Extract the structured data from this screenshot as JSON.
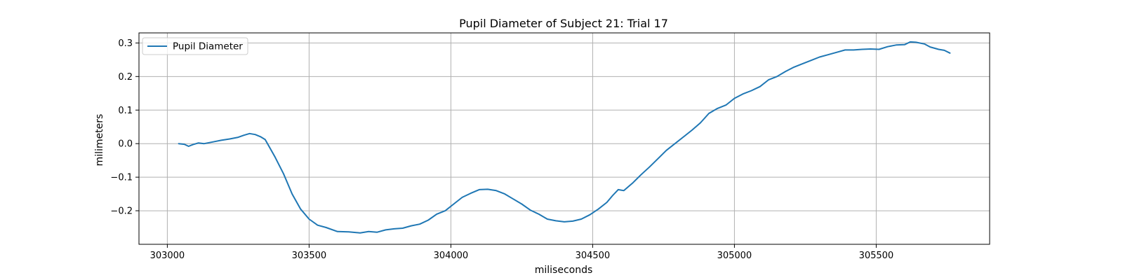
{
  "chart_data": {
    "type": "line",
    "title": "Pupil Diameter of Subject 21: Trial 17",
    "xlabel": "miliseconds",
    "ylabel": "milimeters",
    "xlim": [
      302900,
      305900
    ],
    "ylim": [
      -0.3,
      0.33
    ],
    "xticks": [
      303000,
      303500,
      304000,
      304500,
      305000,
      305500
    ],
    "yticks": [
      -0.2,
      -0.1,
      0.0,
      0.1,
      0.2,
      0.3
    ],
    "xtick_labels": [
      "303000",
      "303500",
      "304000",
      "304500",
      "305000",
      "305500"
    ],
    "ytick_labels": [
      "−0.2",
      "−0.1",
      "0.0",
      "0.1",
      "0.2",
      "0.3"
    ],
    "grid": true,
    "legend_position": "top-left",
    "series": [
      {
        "name": "Pupil Diameter",
        "color": "#1f77b4",
        "points": [
          [
            303040,
            0.0
          ],
          [
            303060,
            -0.002
          ],
          [
            303075,
            -0.008
          ],
          [
            303090,
            -0.003
          ],
          [
            303110,
            0.002
          ],
          [
            303130,
            0.0
          ],
          [
            303160,
            0.005
          ],
          [
            303190,
            0.01
          ],
          [
            303220,
            0.014
          ],
          [
            303250,
            0.019
          ],
          [
            303270,
            0.025
          ],
          [
            303290,
            0.03
          ],
          [
            303310,
            0.027
          ],
          [
            303330,
            0.02
          ],
          [
            303345,
            0.012
          ],
          [
            303360,
            -0.01
          ],
          [
            303380,
            -0.04
          ],
          [
            303410,
            -0.09
          ],
          [
            303440,
            -0.15
          ],
          [
            303470,
            -0.195
          ],
          [
            303500,
            -0.225
          ],
          [
            303530,
            -0.243
          ],
          [
            303560,
            -0.25
          ],
          [
            303600,
            -0.262
          ],
          [
            303640,
            -0.263
          ],
          [
            303680,
            -0.266
          ],
          [
            303710,
            -0.262
          ],
          [
            303740,
            -0.264
          ],
          [
            303770,
            -0.257
          ],
          [
            303800,
            -0.254
          ],
          [
            303830,
            -0.252
          ],
          [
            303860,
            -0.245
          ],
          [
            303890,
            -0.24
          ],
          [
            303920,
            -0.228
          ],
          [
            303950,
            -0.21
          ],
          [
            303980,
            -0.2
          ],
          [
            304010,
            -0.18
          ],
          [
            304040,
            -0.16
          ],
          [
            304070,
            -0.148
          ],
          [
            304100,
            -0.137
          ],
          [
            304130,
            -0.136
          ],
          [
            304160,
            -0.14
          ],
          [
            304190,
            -0.15
          ],
          [
            304220,
            -0.165
          ],
          [
            304250,
            -0.18
          ],
          [
            304280,
            -0.198
          ],
          [
            304310,
            -0.21
          ],
          [
            304340,
            -0.225
          ],
          [
            304370,
            -0.23
          ],
          [
            304400,
            -0.233
          ],
          [
            304430,
            -0.231
          ],
          [
            304460,
            -0.225
          ],
          [
            304490,
            -0.212
          ],
          [
            304520,
            -0.195
          ],
          [
            304550,
            -0.175
          ],
          [
            304570,
            -0.155
          ],
          [
            304590,
            -0.137
          ],
          [
            304610,
            -0.14
          ],
          [
            304640,
            -0.118
          ],
          [
            304670,
            -0.093
          ],
          [
            304700,
            -0.07
          ],
          [
            304730,
            -0.045
          ],
          [
            304760,
            -0.02
          ],
          [
            304790,
            0.0
          ],
          [
            304820,
            0.02
          ],
          [
            304850,
            0.04
          ],
          [
            304880,
            0.062
          ],
          [
            304910,
            0.09
          ],
          [
            304940,
            0.105
          ],
          [
            304970,
            0.115
          ],
          [
            305000,
            0.135
          ],
          [
            305030,
            0.148
          ],
          [
            305060,
            0.158
          ],
          [
            305090,
            0.17
          ],
          [
            305120,
            0.19
          ],
          [
            305150,
            0.2
          ],
          [
            305180,
            0.215
          ],
          [
            305210,
            0.228
          ],
          [
            305240,
            0.238
          ],
          [
            305270,
            0.248
          ],
          [
            305300,
            0.258
          ],
          [
            305330,
            0.265
          ],
          [
            305360,
            0.272
          ],
          [
            305390,
            0.279
          ],
          [
            305420,
            0.279
          ],
          [
            305450,
            0.281
          ],
          [
            305480,
            0.282
          ],
          [
            305510,
            0.281
          ],
          [
            305540,
            0.289
          ],
          [
            305570,
            0.294
          ],
          [
            305600,
            0.295
          ],
          [
            305620,
            0.303
          ],
          [
            305640,
            0.302
          ],
          [
            305670,
            0.297
          ],
          [
            305690,
            0.288
          ],
          [
            305720,
            0.281
          ],
          [
            305740,
            0.278
          ],
          [
            305760,
            0.27
          ]
        ]
      }
    ]
  }
}
